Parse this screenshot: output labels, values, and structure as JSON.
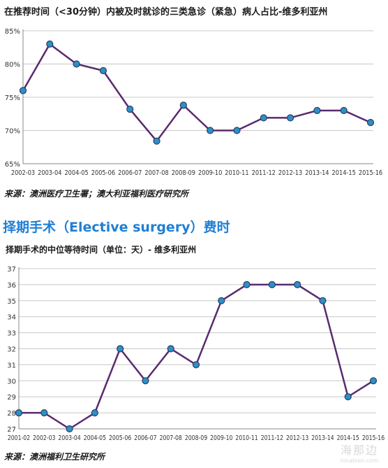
{
  "chart_data": [
    {
      "type": "line",
      "title": "在推荐时间（<30分钟）内被及时就诊的三类急诊（紧急）病人占比-维多利亚州",
      "source": "来源：澳洲医疗卫生署；澳大利亚福利医疗研究所",
      "categories": [
        "2002-03",
        "2003-04",
        "2004-05",
        "2005-06",
        "2006-07",
        "2007-08",
        "2008-09",
        "2009-10",
        "2010-11",
        "2011-12",
        "2012-13",
        "2013-14",
        "2014-15",
        "2015-16"
      ],
      "values": [
        76,
        83,
        80,
        79,
        73.2,
        68.4,
        73.8,
        70,
        70,
        71.9,
        71.9,
        73,
        73,
        71.2
      ],
      "ylim": [
        65,
        85
      ],
      "yticks": [
        65,
        70,
        75,
        80,
        85
      ],
      "ytick_labels": [
        "65%",
        "70%",
        "75%",
        "80%",
        "85%"
      ],
      "grid": true,
      "line_color": "#5a2a6e",
      "marker_color": "#2f8fc4"
    },
    {
      "type": "line",
      "section_heading": "择期手术（Elective surgery）费时",
      "title": "择期手术的中位等待时间（单位：天）- 维多利亚州",
      "source": "来源：澳洲福利卫生研究所",
      "categories": [
        "2001-02",
        "2002-03",
        "2003-04",
        "2004-05",
        "2005-06",
        "2006-07",
        "2007-08",
        "2008-09",
        "2009-10",
        "2010-11",
        "2011-12",
        "2012-13",
        "2013-14",
        "2014-15",
        "2015-16"
      ],
      "values": [
        28,
        28,
        27,
        28,
        32,
        30,
        32,
        31,
        35,
        36,
        36,
        36,
        35,
        29,
        30
      ],
      "ylim": [
        27,
        37
      ],
      "yticks": [
        27,
        28,
        29,
        30,
        31,
        32,
        33,
        34,
        35,
        36,
        37
      ],
      "grid": true,
      "line_color": "#5a2a6e",
      "marker_color": "#2f8fc4"
    }
  ],
  "watermark": {
    "text": "海那边",
    "url": "hinabian.com"
  }
}
